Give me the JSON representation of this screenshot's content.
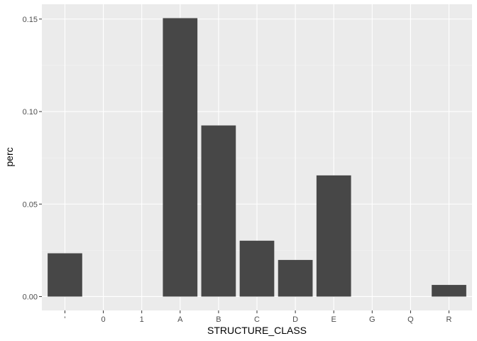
{
  "chart_data": {
    "type": "bar",
    "categories": [
      "'",
      "0",
      "1",
      "A",
      "B",
      "C",
      "D",
      "E",
      "G",
      "Q",
      "R"
    ],
    "values": [
      0.0234,
      0.0,
      0.0,
      0.1505,
      0.0925,
      0.0302,
      0.0198,
      0.0655,
      0.0,
      0.0,
      0.0063
    ],
    "xlabel": "STRUCTURE_CLASS",
    "ylabel": "perc",
    "ylim": [
      -0.0075,
      0.158
    ],
    "yticks": [
      0.0,
      0.05,
      0.1,
      0.15
    ],
    "ytick_labels": [
      "0.00",
      "0.05",
      "0.10",
      "0.15"
    ],
    "grid": true,
    "colors": {
      "panel_background": "#ebebeb",
      "grid_major": "#ffffff",
      "grid_minor": "#f5f5f5",
      "bar_fill": "#474747"
    }
  }
}
